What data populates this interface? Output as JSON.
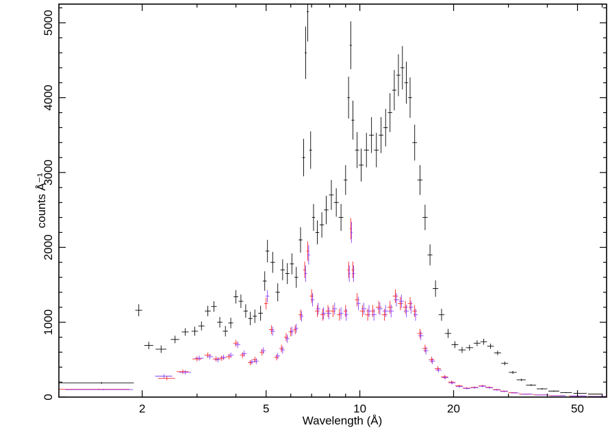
{
  "chart_data": {
    "type": "errorbar",
    "x_label": "Wavelength (Å)",
    "y_label": "counts Å⁻¹",
    "xscale": "log",
    "xlim": [
      1.08,
      62
    ],
    "ylim": [
      0,
      5250
    ],
    "xticks": [
      2,
      5,
      10,
      20,
      50
    ],
    "xminorticks": [
      3,
      4,
      6,
      7,
      8,
      9,
      30,
      40,
      60
    ],
    "yticks": [
      0,
      1000,
      2000,
      3000,
      4000,
      5000
    ],
    "yminorticks": [
      200,
      400,
      600,
      800,
      1200,
      1400,
      1600,
      1800,
      2200,
      2400,
      2600,
      2800,
      3200,
      3400,
      3600,
      3800,
      4200,
      4400,
      4600,
      4800,
      5200
    ],
    "series": [
      {
        "color": "#000000",
        "x": [
          1.48,
          1.95,
          2.1,
          2.3,
          2.55,
          2.75,
          2.95,
          3.1,
          3.25,
          3.4,
          3.55,
          3.7,
          3.85,
          4.0,
          4.15,
          4.3,
          4.45,
          4.6,
          4.8,
          4.95,
          5.05,
          5.25,
          5.45,
          5.65,
          5.85,
          6.05,
          6.25,
          6.45,
          6.6,
          6.7,
          6.8,
          6.95,
          7.1,
          7.3,
          7.55,
          7.8,
          8.1,
          8.4,
          8.7,
          9.0,
          9.2,
          9.35,
          9.5,
          9.8,
          10.1,
          10.5,
          10.9,
          11.3,
          11.7,
          12.1,
          12.5,
          12.9,
          13.3,
          13.7,
          14.1,
          14.5,
          15.0,
          15.6,
          16.2,
          16.8,
          17.5,
          18.3,
          19.2,
          20.2,
          21.3,
          22.5,
          23.8,
          25.0,
          26.3,
          27.7,
          29.2,
          31,
          33,
          35.5,
          38.5,
          42,
          46,
          51,
          57
        ],
        "xerr": [
          0.4,
          0.05,
          0.07,
          0.09,
          0.08,
          0.07,
          0.07,
          0.07,
          0.07,
          0.07,
          0.07,
          0.07,
          0.07,
          0.07,
          0.07,
          0.07,
          0.07,
          0.07,
          0.08,
          0.07,
          0.07,
          0.09,
          0.09,
          0.09,
          0.09,
          0.09,
          0.09,
          0.09,
          0.07,
          0.05,
          0.05,
          0.07,
          0.08,
          0.1,
          0.12,
          0.13,
          0.14,
          0.15,
          0.15,
          0.12,
          0.08,
          0.07,
          0.1,
          0.15,
          0.18,
          0.2,
          0.2,
          0.2,
          0.2,
          0.2,
          0.2,
          0.2,
          0.2,
          0.2,
          0.2,
          0.2,
          0.25,
          0.3,
          0.3,
          0.3,
          0.35,
          0.4,
          0.45,
          0.5,
          0.55,
          0.6,
          0.6,
          0.6,
          0.65,
          0.7,
          0.75,
          0.9,
          1.1,
          1.3,
          1.5,
          1.7,
          2,
          2.5,
          3
        ],
        "values": [
          190,
          1160,
          690,
          640,
          770,
          870,
          880,
          950,
          1150,
          1210,
          1000,
          880,
          990,
          1340,
          1280,
          1150,
          1050,
          1080,
          1120,
          1550,
          1950,
          1800,
          1400,
          1700,
          1650,
          1780,
          1600,
          2100,
          3200,
          4600,
          5150,
          3300,
          2400,
          2200,
          2300,
          2500,
          2700,
          2600,
          2400,
          2900,
          4000,
          4700,
          3700,
          3300,
          3100,
          3300,
          3500,
          3300,
          3500,
          3600,
          3800,
          4100,
          4300,
          4400,
          4200,
          4000,
          3400,
          2900,
          2400,
          1900,
          1450,
          1100,
          850,
          700,
          630,
          660,
          720,
          740,
          680,
          590,
          450,
          330,
          230,
          160,
          110,
          80,
          60,
          50,
          40
        ],
        "errors": [
          12,
          80,
          50,
          50,
          50,
          50,
          60,
          60,
          70,
          70,
          70,
          70,
          70,
          90,
          90,
          90,
          90,
          90,
          100,
          130,
          150,
          140,
          120,
          140,
          140,
          140,
          140,
          170,
          250,
          350,
          400,
          250,
          180,
          160,
          170,
          190,
          200,
          190,
          180,
          200,
          280,
          320,
          260,
          240,
          220,
          230,
          240,
          230,
          240,
          250,
          260,
          270,
          280,
          290,
          280,
          270,
          240,
          200,
          170,
          140,
          110,
          80,
          60,
          45,
          40,
          40,
          40,
          40,
          35,
          30,
          25,
          20,
          15,
          12,
          10,
          8,
          6,
          5,
          4
        ]
      },
      {
        "color": "#ff2020",
        "x": [
          1.45,
          2.4,
          2.7,
          3.0,
          3.25,
          3.45,
          3.6,
          3.8,
          4.0,
          4.2,
          4.45,
          4.6,
          4.85,
          5.0,
          5.2,
          5.4,
          5.6,
          5.8,
          6.0,
          6.2,
          6.45,
          6.65,
          6.8,
          7.0,
          7.3,
          7.6,
          7.9,
          8.2,
          8.6,
          9.0,
          9.2,
          9.35,
          9.5,
          9.8,
          10.2,
          10.6,
          11.0,
          11.5,
          12.0,
          12.5,
          13.0,
          13.5,
          14.0,
          14.5,
          15.0,
          15.6,
          16.2,
          17.0,
          17.8,
          18.7,
          19.7,
          20.8,
          22.0,
          23.3,
          24.7,
          26.0,
          27.5,
          29.0,
          31,
          34,
          38,
          43,
          50,
          58
        ],
        "xerr": [
          0.37,
          0.15,
          0.12,
          0.1,
          0.08,
          0.08,
          0.08,
          0.08,
          0.08,
          0.08,
          0.08,
          0.08,
          0.08,
          0.07,
          0.09,
          0.09,
          0.09,
          0.09,
          0.09,
          0.09,
          0.09,
          0.07,
          0.07,
          0.1,
          0.12,
          0.13,
          0.14,
          0.15,
          0.15,
          0.12,
          0.08,
          0.07,
          0.1,
          0.15,
          0.2,
          0.2,
          0.2,
          0.25,
          0.25,
          0.25,
          0.25,
          0.25,
          0.25,
          0.25,
          0.25,
          0.3,
          0.3,
          0.35,
          0.4,
          0.45,
          0.5,
          0.55,
          0.6,
          0.65,
          0.65,
          0.7,
          0.75,
          0.8,
          1,
          1.5,
          2,
          2.5,
          3,
          4
        ],
        "values": [
          105,
          250,
          340,
          510,
          560,
          510,
          520,
          540,
          720,
          560,
          460,
          500,
          600,
          1250,
          900,
          530,
          650,
          800,
          870,
          900,
          1100,
          1700,
          1950,
          1350,
          1150,
          1100,
          1150,
          1150,
          1100,
          1150,
          1700,
          2250,
          1700,
          1300,
          1150,
          1100,
          1150,
          1200,
          1100,
          1200,
          1350,
          1250,
          1200,
          1250,
          1150,
          850,
          650,
          500,
          380,
          270,
          200,
          150,
          120,
          130,
          150,
          130,
          100,
          80,
          60,
          40,
          30,
          20,
          15,
          10
        ],
        "errors": [
          8,
          25,
          30,
          35,
          35,
          35,
          35,
          35,
          45,
          40,
          35,
          40,
          45,
          80,
          60,
          40,
          50,
          55,
          60,
          60,
          70,
          110,
          130,
          90,
          80,
          80,
          80,
          80,
          80,
          80,
          110,
          140,
          110,
          90,
          80,
          80,
          80,
          85,
          80,
          85,
          90,
          90,
          85,
          85,
          80,
          60,
          50,
          40,
          30,
          25,
          20,
          15,
          12,
          12,
          14,
          12,
          10,
          8,
          7,
          5,
          4,
          3,
          3,
          2
        ]
      },
      {
        "color": "#8a3cff",
        "x": [
          1.5,
          2.35,
          2.75,
          3.05,
          3.3,
          3.5,
          3.65,
          3.85,
          4.05,
          4.25,
          4.5,
          4.65,
          4.9,
          5.05,
          5.25,
          5.45,
          5.65,
          5.85,
          6.05,
          6.25,
          6.5,
          6.7,
          6.85,
          7.05,
          7.35,
          7.65,
          7.95,
          8.3,
          8.7,
          9.05,
          9.25,
          9.4,
          9.55,
          9.9,
          10.3,
          10.7,
          11.1,
          11.6,
          12.1,
          12.6,
          13.1,
          13.6,
          14.1,
          14.6,
          15.1,
          15.7,
          16.3,
          17.1,
          17.9,
          18.8,
          19.8,
          20.9,
          22.1,
          23.4,
          24.8,
          26.1,
          27.6,
          29.1,
          31.5,
          34.5,
          38.5,
          43.5,
          50.5,
          58.5
        ],
        "xerr": [
          0.37,
          0.15,
          0.12,
          0.1,
          0.08,
          0.08,
          0.08,
          0.08,
          0.08,
          0.08,
          0.08,
          0.08,
          0.08,
          0.07,
          0.09,
          0.09,
          0.09,
          0.09,
          0.09,
          0.09,
          0.09,
          0.07,
          0.07,
          0.1,
          0.12,
          0.13,
          0.14,
          0.15,
          0.15,
          0.12,
          0.08,
          0.07,
          0.1,
          0.15,
          0.2,
          0.2,
          0.2,
          0.25,
          0.25,
          0.25,
          0.25,
          0.25,
          0.25,
          0.25,
          0.25,
          0.3,
          0.3,
          0.35,
          0.4,
          0.45,
          0.5,
          0.55,
          0.6,
          0.65,
          0.65,
          0.7,
          0.75,
          0.8,
          1,
          1.5,
          2,
          2.5,
          3,
          4
        ],
        "values": [
          100,
          280,
          330,
          520,
          540,
          500,
          530,
          560,
          700,
          580,
          470,
          480,
          620,
          1350,
          880,
          550,
          630,
          780,
          880,
          920,
          1080,
          1650,
          1900,
          1300,
          1180,
          1120,
          1120,
          1180,
          1120,
          1100,
          1650,
          2200,
          1650,
          1250,
          1180,
          1150,
          1100,
          1180,
          1150,
          1150,
          1300,
          1280,
          1150,
          1200,
          1100,
          820,
          620,
          480,
          360,
          260,
          190,
          140,
          115,
          125,
          145,
          125,
          95,
          75,
          55,
          38,
          28,
          18,
          14,
          9
        ],
        "errors": [
          8,
          25,
          30,
          35,
          35,
          35,
          35,
          35,
          45,
          40,
          35,
          40,
          45,
          80,
          60,
          40,
          50,
          55,
          60,
          60,
          70,
          110,
          130,
          90,
          80,
          80,
          80,
          80,
          80,
          80,
          110,
          140,
          110,
          90,
          80,
          80,
          80,
          85,
          80,
          85,
          90,
          90,
          85,
          85,
          80,
          60,
          50,
          40,
          30,
          25,
          20,
          15,
          12,
          12,
          14,
          12,
          10,
          8,
          7,
          5,
          4,
          3,
          3,
          2
        ]
      }
    ]
  }
}
